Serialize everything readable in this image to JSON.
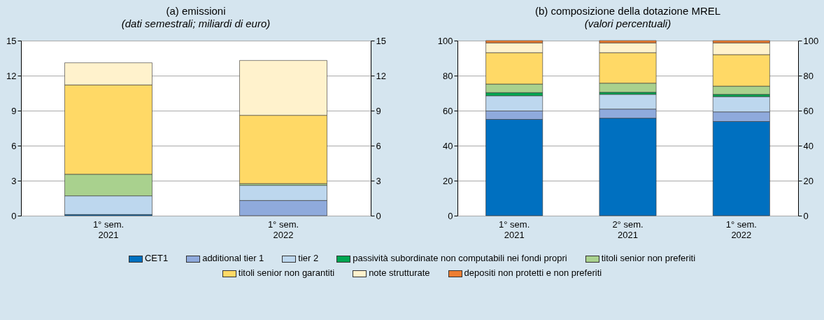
{
  "chart_data": [
    {
      "type": "bar",
      "title": "(a) emissioni",
      "subtitle": "(dati semestrali; miliardi di euro)",
      "stacked": true,
      "categories": [
        "1° sem. 2021",
        "1° sem. 2022"
      ],
      "ylim": [
        0,
        15
      ],
      "yticks": [
        0,
        3,
        6,
        9,
        12,
        15
      ],
      "y2lim": [
        0,
        15
      ],
      "y2ticks": [
        0,
        3,
        6,
        9,
        12,
        15
      ],
      "grid": "y",
      "series": [
        {
          "color": "#0070c0",
          "values": [
            0.1,
            0
          ]
        },
        {
          "color": "#8faadc",
          "values": [
            0,
            1.3
          ]
        },
        {
          "color": "#bdd7ee",
          "values": [
            1.6,
            1.3
          ]
        },
        {
          "color": "#00a651",
          "values": [
            0,
            0
          ]
        },
        {
          "color": "#a9d18e",
          "values": [
            1.85,
            0.15
          ]
        },
        {
          "color": "#ffd966",
          "values": [
            7.65,
            5.85
          ]
        },
        {
          "color": "#fff2cc",
          "values": [
            1.9,
            4.7
          ]
        },
        {
          "color": "#ed7d31",
          "values": [
            0,
            0
          ]
        }
      ]
    },
    {
      "type": "bar",
      "title": "(b) composizione della dotazione MREL",
      "subtitle": "(valori percentuali)",
      "stacked": true,
      "categories": [
        "1° sem. 2021",
        "2° sem. 2021",
        "1° sem. 2022"
      ],
      "ylim": [
        0,
        100
      ],
      "yticks": [
        0,
        20,
        40,
        60,
        80,
        100
      ],
      "y2lim": [
        0,
        100
      ],
      "y2ticks": [
        0,
        20,
        40,
        60,
        80,
        100
      ],
      "grid": "y",
      "legend": "bottom",
      "series": [
        {
          "name": "CET1",
          "color": "#0070c0",
          "values": [
            55,
            55.7,
            53.8
          ]
        },
        {
          "name": "additional tier 1",
          "color": "#8faadc",
          "values": [
            4.8,
            5.2,
            5.5
          ]
        },
        {
          "name": "tier 2",
          "color": "#bdd7ee",
          "values": [
            8.7,
            8.4,
            8.7
          ]
        },
        {
          "name": "passività subordinate non computabili nei fondi propri",
          "color": "#00a651",
          "values": [
            1.8,
            1.2,
            1.3
          ]
        },
        {
          "name": "titoli senior non preferiti",
          "color": "#a9d18e",
          "values": [
            4.9,
            5.2,
            4.7
          ]
        },
        {
          "name": "titoli senior non garantiti",
          "color": "#ffd966",
          "values": [
            17.9,
            17.4,
            18
          ]
        },
        {
          "name": "note strutturate",
          "color": "#fff2cc",
          "values": [
            5.6,
            5.6,
            6.7
          ]
        },
        {
          "name": "depositi non protetti e non preferiti",
          "color": "#ed7d31",
          "values": [
            1.3,
            1.3,
            1.3
          ]
        }
      ]
    }
  ]
}
